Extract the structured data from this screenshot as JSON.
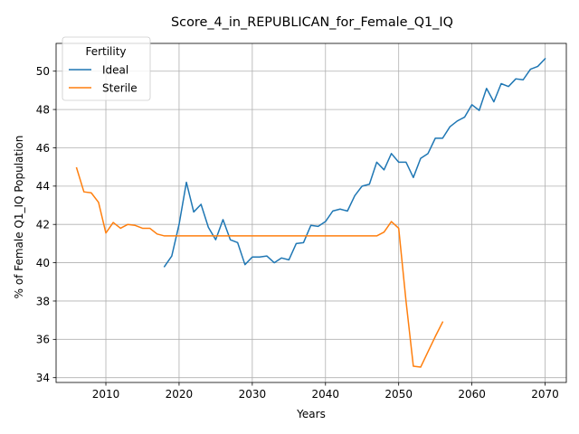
{
  "chart_data": {
    "type": "line",
    "title": "Score_4_in_REPUBLICAN_for_Female_Q1_IQ",
    "xlabel": "Years",
    "ylabel": "% of Female Q1_IQ Population",
    "xlim": [
      2003.2,
      2072.9
    ],
    "ylim": [
      33.75,
      51.45
    ],
    "xticks": [
      2010,
      2020,
      2030,
      2040,
      2050,
      2060,
      2070
    ],
    "yticks": [
      34,
      36,
      38,
      40,
      42,
      44,
      46,
      48,
      50
    ],
    "grid": true,
    "legend": {
      "title": "Fertility",
      "placement": "upper-left"
    },
    "series": [
      {
        "name": "Ideal",
        "color": "#1f77b4",
        "x": [
          2018,
          2019,
          2020,
          2021,
          2022,
          2023,
          2024,
          2025,
          2026,
          2027,
          2028,
          2029,
          2030,
          2031,
          2032,
          2033,
          2034,
          2035,
          2036,
          2037,
          2038,
          2039,
          2040,
          2041,
          2042,
          2043,
          2044,
          2045,
          2046,
          2047,
          2048,
          2049,
          2050,
          2051,
          2052,
          2053,
          2054,
          2055,
          2056,
          2057,
          2058,
          2059,
          2060,
          2061,
          2062,
          2063,
          2064,
          2065,
          2066,
          2067,
          2068,
          2069,
          2070
        ],
        "y": [
          39.8,
          40.35,
          42.0,
          44.2,
          42.65,
          43.05,
          41.85,
          41.2,
          42.25,
          41.2,
          41.05,
          39.9,
          40.3,
          40.3,
          40.35,
          40.0,
          40.25,
          40.15,
          41.0,
          41.05,
          41.95,
          41.9,
          42.15,
          42.7,
          42.8,
          42.7,
          43.5,
          44.0,
          44.1,
          45.25,
          44.85,
          45.7,
          45.25,
          45.25,
          44.45,
          45.45,
          45.7,
          46.5,
          46.5,
          47.1,
          47.4,
          47.6,
          48.25,
          47.95,
          49.1,
          48.4,
          49.35,
          49.2,
          49.6,
          49.55,
          50.1,
          50.25,
          50.65
        ]
      },
      {
        "name": "Sterile",
        "color": "#ff7f0e",
        "x": [
          2006,
          2007,
          2008,
          2009,
          2010,
          2011,
          2012,
          2013,
          2014,
          2015,
          2016,
          2017,
          2018,
          2019,
          2020,
          2021,
          2022,
          2023,
          2024,
          2025,
          2026,
          2027,
          2028,
          2029,
          2030,
          2031,
          2032,
          2033,
          2034,
          2035,
          2036,
          2037,
          2038,
          2039,
          2040,
          2041,
          2042,
          2043,
          2044,
          2045,
          2046,
          2047,
          2048,
          2049,
          2050,
          2051,
          2052,
          2053,
          2054,
          2055,
          2056
        ],
        "y": [
          44.95,
          43.7,
          43.65,
          43.15,
          41.55,
          42.1,
          41.8,
          42.0,
          41.95,
          41.8,
          41.8,
          41.5,
          41.4,
          41.4,
          41.4,
          41.4,
          41.4,
          41.4,
          41.4,
          41.4,
          41.4,
          41.4,
          41.4,
          41.4,
          41.4,
          41.4,
          41.4,
          41.4,
          41.4,
          41.4,
          41.4,
          41.4,
          41.4,
          41.4,
          41.4,
          41.4,
          41.4,
          41.4,
          41.4,
          41.4,
          41.4,
          41.4,
          41.6,
          42.15,
          41.8,
          38.0,
          34.6,
          34.55,
          35.35,
          36.15,
          36.9
        ]
      }
    ]
  }
}
